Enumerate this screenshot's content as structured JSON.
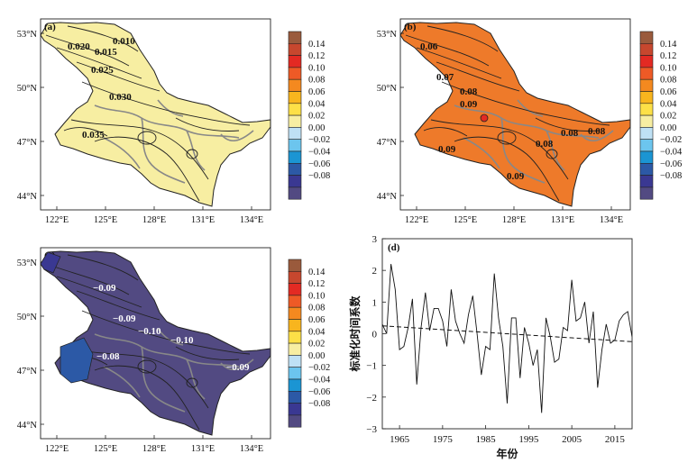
{
  "chart_data": [
    {
      "type": "heatmap",
      "panel": "(a)",
      "xticks": [
        "122°E",
        "125°E",
        "128°E",
        "131°E",
        "134°E"
      ],
      "yticks": [
        "53°N",
        "50°N",
        "47°N",
        "44°N"
      ],
      "fill": "#f7eea2",
      "contour_labels": [
        "0.020",
        "0.010",
        "0.015",
        "0.025",
        "0.030",
        "0.035"
      ],
      "colorbar": [
        "0.14",
        "0.12",
        "0.10",
        "0.08",
        "0.06",
        "0.04",
        "0.02",
        "0.00",
        "−0.02",
        "−0.04",
        "−0.06",
        "−0.08"
      ]
    },
    {
      "type": "heatmap",
      "panel": "(b)",
      "xticks": [
        "122°E",
        "125°E",
        "128°E",
        "131°E",
        "134°E"
      ],
      "yticks": [
        "53°N",
        "50°N",
        "47°N",
        "44°N"
      ],
      "fill": "#ee7a2a",
      "contour_labels": [
        "0.06",
        "0.07",
        "0.08",
        "0.09",
        "0.09",
        "0.08",
        "0.08",
        "0.08",
        "0.09"
      ],
      "colorbar": [
        "0.14",
        "0.12",
        "0.10",
        "0.08",
        "0.06",
        "0.04",
        "0.02",
        "0.00",
        "−0.02",
        "−0.04",
        "−0.06",
        "−0.08"
      ]
    },
    {
      "type": "heatmap",
      "panel": "(c)",
      "xticks": [
        "122°E",
        "125°E",
        "128°E",
        "131°E",
        "134°E"
      ],
      "yticks": [
        "53°N",
        "50°N",
        "47°N",
        "44°N"
      ],
      "fill": "#524a82",
      "contour_labels": [
        "−0.09",
        "−0.09",
        "−0.10",
        "−0.10",
        "−0.08",
        "−0.09"
      ],
      "colorbar": [
        "0.14",
        "0.12",
        "0.10",
        "0.08",
        "0.06",
        "0.04",
        "0.02",
        "0.00",
        "−0.02",
        "−0.04",
        "−0.06",
        "−0.08"
      ]
    },
    {
      "type": "line",
      "panel": "(d)",
      "xlabel": "年份",
      "ylabel": "标准化时间系数",
      "xlim": [
        1961,
        2019
      ],
      "ylim": [
        -3,
        3
      ],
      "xticks": [
        "1965",
        "1975",
        "1985",
        "1995",
        "2005",
        "2015"
      ],
      "yticks": [
        "3",
        "2",
        "1",
        "0",
        "−1",
        "−2",
        "−3"
      ],
      "series": [
        {
          "x": [
            1961,
            1962,
            1963,
            1964,
            1965,
            1966,
            1967,
            1968,
            1969,
            1970,
            1971,
            1972,
            1973,
            1974,
            1975,
            1976,
            1977,
            1978,
            1979,
            1980,
            1981,
            1982,
            1983,
            1984,
            1985,
            1986,
            1987,
            1988,
            1989,
            1990,
            1991,
            1992,
            1993,
            1994,
            1995,
            1996,
            1997,
            1998,
            1999,
            2000,
            2001,
            2002,
            2003,
            2004,
            2005,
            2006,
            2007,
            2008,
            2009,
            2010,
            2011,
            2012,
            2013,
            2014,
            2015,
            2016,
            2017,
            2018,
            2019
          ],
          "y": [
            0.3,
            0.0,
            2.2,
            1.4,
            -0.5,
            -0.4,
            0.2,
            1.1,
            -1.6,
            0.2,
            1.3,
            0.1,
            0.8,
            0.8,
            0.4,
            -0.4,
            1.4,
            0.4,
            0.0,
            -0.3,
            0.6,
            1.2,
            0.0,
            -1.3,
            -0.4,
            -0.5,
            1.9,
            0.5,
            -0.4,
            -2.2,
            0.5,
            0.5,
            -1.4,
            0.2,
            -0.3,
            -1.0,
            -0.5,
            -2.5,
            0.5,
            -0.1,
            -0.9,
            -0.8,
            0.2,
            0.1,
            1.7,
            0.4,
            0.5,
            1.0,
            -0.3,
            0.7,
            -1.7,
            -0.5,
            0.3,
            -0.3,
            -0.2,
            0.4,
            0.6,
            0.7,
            -0.1
          ]
        },
        {
          "x": [
            1961,
            2019
          ],
          "y": [
            0.25,
            -0.25
          ],
          "dashed": true
        }
      ]
    }
  ],
  "colors": {
    "colorbar": [
      "#9a5a3c",
      "#c7472e",
      "#e32a23",
      "#ee5a26",
      "#f4891f",
      "#f8b51e",
      "#fde047",
      "#f7eea2",
      "#bfe1f5",
      "#6cc5ee",
      "#1b95d3",
      "#2c59a6",
      "#3a3892",
      "#524a82"
    ]
  }
}
